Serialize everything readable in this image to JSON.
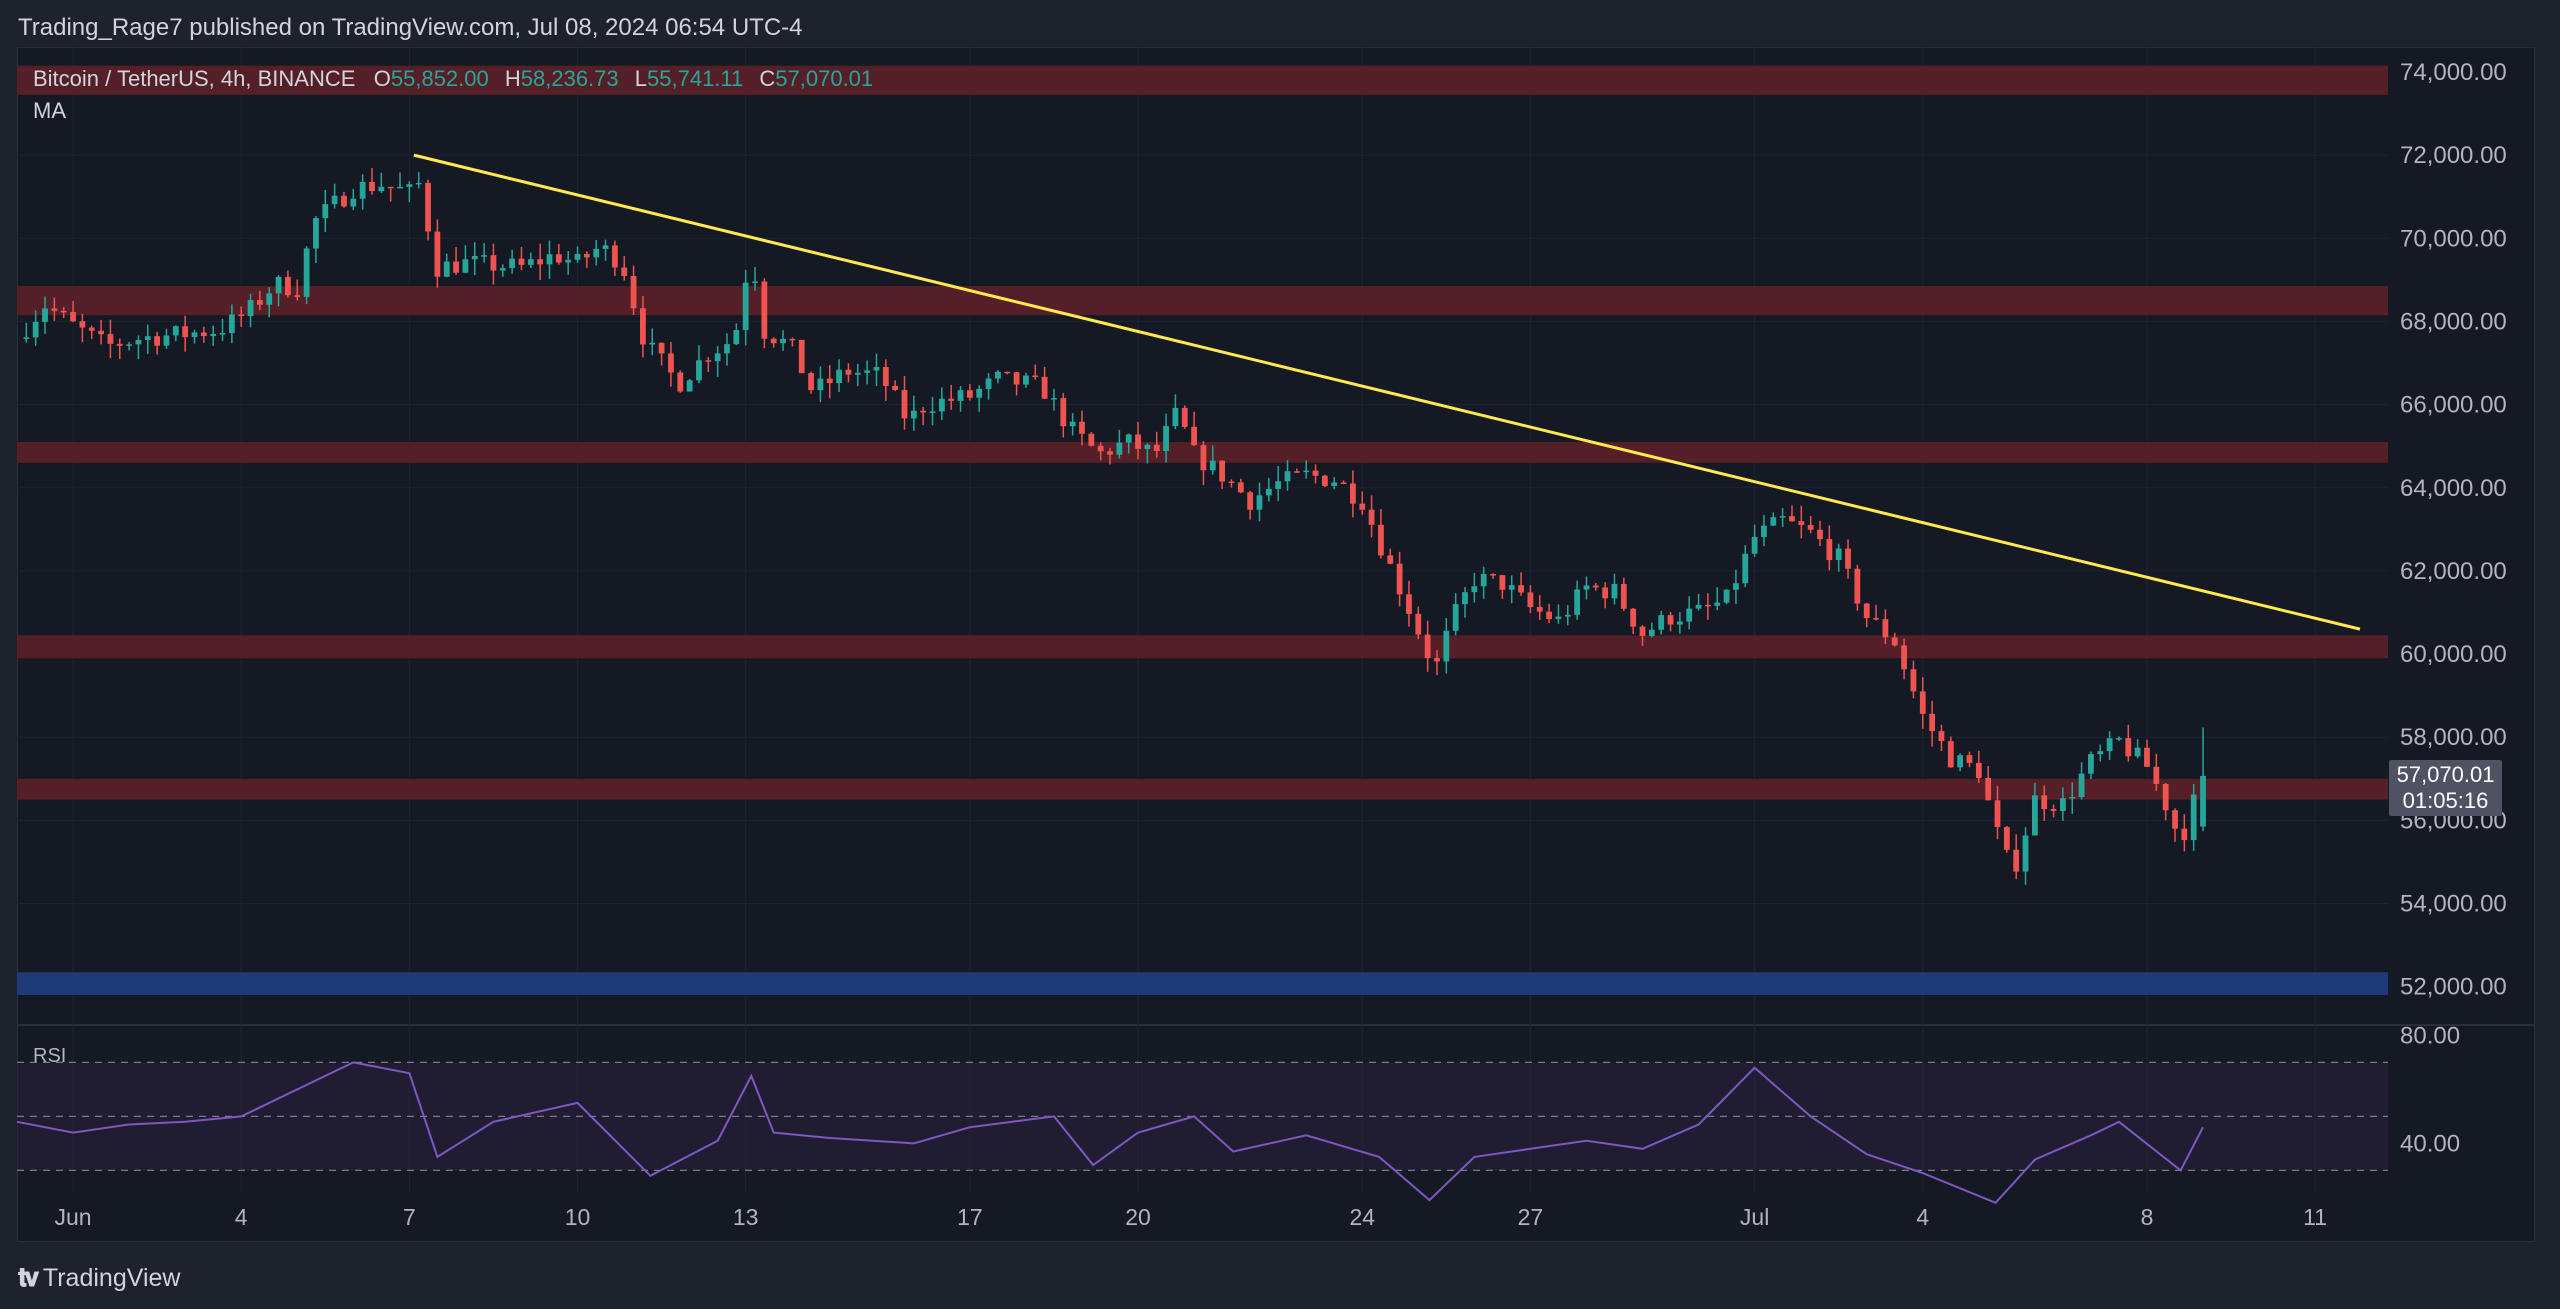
{
  "header": {
    "published_line": "Trading_Rage7 published on TradingView.com, Jul 08, 2024 06:54 UTC-4"
  },
  "legend": {
    "symbol": "Bitcoin / TetherUS, 4h, BINANCE",
    "o_label": "O",
    "o_value": "55,852.00",
    "h_label": "H",
    "h_value": "58,236.73",
    "l_label": "L",
    "l_value": "55,741.11",
    "c_label": "C",
    "c_value": "57,070.01",
    "ma": "MA"
  },
  "price_tag": {
    "price": "57,070.01",
    "countdown": "01:05:16"
  },
  "rsi": {
    "label": "RSI"
  },
  "footer": {
    "brand": "TradingView"
  },
  "colors": {
    "up": "#26a69a",
    "down": "#ef5350",
    "zone": "#5b1f28",
    "support_zone": "#1e3a78",
    "trendline": "#ffe94d",
    "rsi_line": "#7e57c2"
  },
  "chart_data": {
    "type": "candlestick",
    "title": "Bitcoin / TetherUS, 4h, BINANCE",
    "y_axis": {
      "ylim": [
        51200,
        74600
      ],
      "ticks": [
        74000,
        72000,
        70000,
        68000,
        66000,
        64000,
        62000,
        60000,
        58000,
        56000,
        54000,
        52000
      ],
      "tick_labels": [
        "74,000.00",
        "72,000.00",
        "70,000.00",
        "68,000.00",
        "66,000.00",
        "64,000.00",
        "62,000.00",
        "60,000.00",
        "58,000.00",
        "56,000.00",
        "54,000.00",
        "52,000.00"
      ]
    },
    "x_axis": {
      "tick_labels": [
        "Jun",
        "4",
        "7",
        "10",
        "13",
        "17",
        "20",
        "24",
        "27",
        "Jul",
        "4",
        "8",
        "11"
      ],
      "tick_days": [
        0,
        3,
        6,
        9,
        12,
        16,
        19,
        23,
        26,
        30,
        33,
        37,
        40
      ],
      "range_days": [
        -1.0,
        41.3
      ]
    },
    "resistance_zones": [
      {
        "low": 73450,
        "high": 74150
      },
      {
        "low": 68150,
        "high": 68850
      },
      {
        "low": 64600,
        "high": 65100
      },
      {
        "low": 59900,
        "high": 60450
      },
      {
        "low": 56500,
        "high": 57000
      }
    ],
    "support_zones": [
      {
        "low": 51800,
        "high": 52350
      }
    ],
    "trendline": {
      "from": {
        "day": 6.08,
        "price": 72000
      },
      "to": {
        "day": 40.8,
        "price": 60600
      }
    },
    "price_path": {
      "description": "approximate 4h closes, day 0 = Jun 1",
      "points": [
        [
          -1.0,
          67600
        ],
        [
          -0.5,
          68400
        ],
        [
          0.0,
          67900
        ],
        [
          0.6,
          67400
        ],
        [
          1.2,
          67600
        ],
        [
          2.0,
          67700
        ],
        [
          2.6,
          67800
        ],
        [
          3.1,
          68200
        ],
        [
          3.6,
          68900
        ],
        [
          4.0,
          68800
        ],
        [
          4.3,
          70400
        ],
        [
          5.0,
          71200
        ],
        [
          5.5,
          71300
        ],
        [
          6.0,
          71100
        ],
        [
          6.1,
          71700
        ],
        [
          6.5,
          69300
        ],
        [
          7.0,
          69400
        ],
        [
          8.0,
          69300
        ],
        [
          8.6,
          69600
        ],
        [
          9.0,
          69400
        ],
        [
          9.4,
          69800
        ],
        [
          9.8,
          69400
        ],
        [
          10.2,
          67500
        ],
        [
          10.8,
          66500
        ],
        [
          11.3,
          67200
        ],
        [
          11.8,
          67600
        ],
        [
          12.1,
          69800
        ],
        [
          12.3,
          67800
        ],
        [
          12.8,
          67400
        ],
        [
          13.2,
          66300
        ],
        [
          13.8,
          66800
        ],
        [
          14.4,
          66700
        ],
        [
          14.9,
          65600
        ],
        [
          15.2,
          66000
        ],
        [
          16.0,
          66200
        ],
        [
          16.5,
          66600
        ],
        [
          17.0,
          66500
        ],
        [
          17.3,
          66400
        ],
        [
          17.8,
          65400
        ],
        [
          18.3,
          64800
        ],
        [
          18.8,
          65100
        ],
        [
          19.3,
          64800
        ],
        [
          19.7,
          65800
        ],
        [
          20.0,
          64800
        ],
        [
          20.5,
          64300
        ],
        [
          21.0,
          63700
        ],
        [
          21.5,
          64100
        ],
        [
          22.0,
          64300
        ],
        [
          22.5,
          64200
        ],
        [
          23.0,
          63700
        ],
        [
          23.4,
          62400
        ],
        [
          23.8,
          61200
        ],
        [
          24.3,
          59600
        ],
        [
          24.6,
          60800
        ],
        [
          25.0,
          61800
        ],
        [
          25.5,
          61700
        ],
        [
          26.0,
          61100
        ],
        [
          26.5,
          60800
        ],
        [
          27.0,
          61600
        ],
        [
          27.5,
          61500
        ],
        [
          28.0,
          60500
        ],
        [
          28.5,
          60900
        ],
        [
          29.0,
          61000
        ],
        [
          29.5,
          61300
        ],
        [
          30.0,
          62800
        ],
        [
          30.5,
          63200
        ],
        [
          31.0,
          62900
        ],
        [
          31.5,
          62300
        ],
        [
          32.0,
          60900
        ],
        [
          32.5,
          60300
        ],
        [
          33.0,
          58500
        ],
        [
          33.5,
          57500
        ],
        [
          34.0,
          57200
        ],
        [
          34.3,
          55800
        ],
        [
          34.6,
          54700
        ],
        [
          35.0,
          56500
        ],
        [
          35.5,
          56400
        ],
        [
          36.0,
          57400
        ],
        [
          36.5,
          57900
        ],
        [
          37.0,
          57300
        ],
        [
          37.3,
          56500
        ],
        [
          37.6,
          55500
        ],
        [
          37.8,
          56300
        ],
        [
          38.0,
          57070
        ]
      ],
      "last": {
        "open": 55852.0,
        "high": 58236.73,
        "low": 55741.11,
        "close": 57070.01
      }
    },
    "rsi_panel": {
      "tick_labels": [
        "80.00",
        "40.00"
      ],
      "levels": [
        70,
        50,
        30
      ],
      "range": [
        22,
        82
      ],
      "points": [
        [
          -1.0,
          48
        ],
        [
          0.0,
          44
        ],
        [
          1.0,
          47
        ],
        [
          2.0,
          48
        ],
        [
          3.0,
          50
        ],
        [
          4.0,
          60
        ],
        [
          5.0,
          70
        ],
        [
          6.0,
          66
        ],
        [
          6.5,
          35
        ],
        [
          7.5,
          48
        ],
        [
          9.0,
          55
        ],
        [
          10.3,
          28
        ],
        [
          11.5,
          41
        ],
        [
          12.1,
          65
        ],
        [
          12.5,
          44
        ],
        [
          13.5,
          42
        ],
        [
          15.0,
          40
        ],
        [
          16.0,
          46
        ],
        [
          17.5,
          50
        ],
        [
          18.2,
          32
        ],
        [
          19.0,
          44
        ],
        [
          20.0,
          50
        ],
        [
          20.7,
          37
        ],
        [
          22.0,
          43
        ],
        [
          23.3,
          35
        ],
        [
          24.2,
          19
        ],
        [
          25.0,
          35
        ],
        [
          26.0,
          38
        ],
        [
          27.0,
          41
        ],
        [
          28.0,
          38
        ],
        [
          29.0,
          47
        ],
        [
          30.0,
          68
        ],
        [
          31.0,
          50
        ],
        [
          32.0,
          36
        ],
        [
          33.0,
          29
        ],
        [
          34.3,
          18
        ],
        [
          35.0,
          34
        ],
        [
          36.0,
          43
        ],
        [
          36.5,
          48
        ],
        [
          37.6,
          30
        ],
        [
          38.0,
          46
        ]
      ]
    }
  }
}
